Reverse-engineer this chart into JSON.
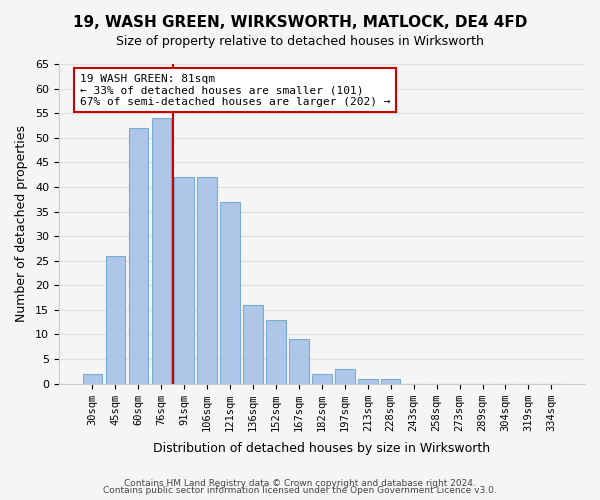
{
  "title": "19, WASH GREEN, WIRKSWORTH, MATLOCK, DE4 4FD",
  "subtitle": "Size of property relative to detached houses in Wirksworth",
  "xlabel": "Distribution of detached houses by size in Wirksworth",
  "ylabel": "Number of detached properties",
  "bin_labels": [
    "30sqm",
    "45sqm",
    "60sqm",
    "76sqm",
    "91sqm",
    "106sqm",
    "121sqm",
    "136sqm",
    "152sqm",
    "167sqm",
    "182sqm",
    "197sqm",
    "213sqm",
    "228sqm",
    "243sqm",
    "258sqm",
    "273sqm",
    "289sqm",
    "304sqm",
    "319sqm",
    "334sqm"
  ],
  "bar_values": [
    2,
    26,
    52,
    54,
    42,
    42,
    37,
    16,
    13,
    9,
    2,
    3,
    1,
    1,
    0,
    0,
    0,
    0,
    0,
    0,
    0
  ],
  "bar_color": "#aec6e8",
  "bar_edge_color": "#7aaed0",
  "property_line_x": 4,
  "property_line_color": "#cc0000",
  "ylim": [
    0,
    65
  ],
  "yticks": [
    0,
    5,
    10,
    15,
    20,
    25,
    30,
    35,
    40,
    45,
    50,
    55,
    60,
    65
  ],
  "annotation_title": "19 WASH GREEN: 81sqm",
  "annotation_line1": "← 33% of detached houses are smaller (101)",
  "annotation_line2": "67% of semi-detached houses are larger (202) →",
  "annotation_box_color": "#ffffff",
  "annotation_box_edge": "#cc0000",
  "footnote1": "Contains HM Land Registry data © Crown copyright and database right 2024.",
  "footnote2": "Contains public sector information licensed under the Open Government Licence v3.0.",
  "grid_color": "#e0e0e0",
  "background_color": "#f5f5f5"
}
